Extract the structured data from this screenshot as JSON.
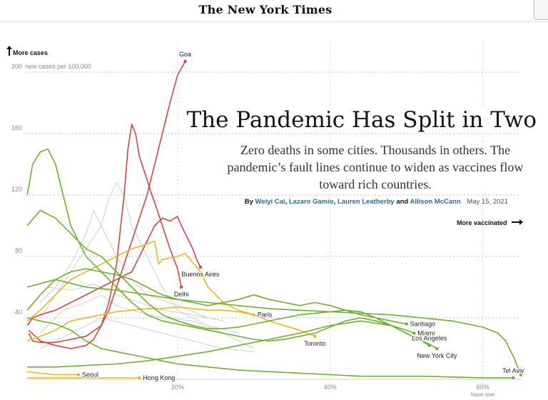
{
  "masthead": {
    "logo": "The New York Times"
  },
  "article": {
    "headline": "The Pandemic Has Split in Two",
    "dek": "Zero deaths in some cities. Thousands in others. The pandemic’s fault lines continue to widen as vaccines flow toward rich countries.",
    "byline_prefix": "By",
    "authors": [
      "Weiyi Cai",
      "Lazaro Gamio",
      "Lauren Leatherby",
      "Allison McCann"
    ],
    "byline_sep1": ",",
    "byline_and": "and",
    "date": "May 15, 2021"
  },
  "annotations": {
    "more_cases": "More cases",
    "more_vaccinated": "More vaccinated",
    "y_unit": "new cases per 100,000",
    "footnote": "have one"
  },
  "colors": {
    "red": "#d9453b",
    "yellow": "#f0b429",
    "green": "#6cb22e",
    "gray": "#cfcfcf"
  },
  "chart_data": {
    "type": "line",
    "x_unit": "percent with at least one dose",
    "y_unit": "new cases per 100,000",
    "xlim": [
      0,
      65
    ],
    "ylim": [
      0,
      200
    ],
    "x_ticks": [
      20,
      40,
      60
    ],
    "x_tick_labels": [
      "20%",
      "40%",
      "60%"
    ],
    "y_ticks": [
      40,
      80,
      120,
      160,
      200
    ],
    "y_tick_labels": [
      "40",
      "80",
      "120",
      "160",
      "200"
    ],
    "grid": true,
    "series": [
      {
        "name": "Goa",
        "color": "red",
        "label_pos": "above",
        "points": [
          [
            0.5,
            30
          ],
          [
            1,
            25
          ],
          [
            2,
            24
          ],
          [
            4,
            24
          ],
          [
            6,
            26
          ],
          [
            8,
            28
          ],
          [
            10,
            35
          ],
          [
            11,
            45
          ],
          [
            12,
            60
          ],
          [
            13,
            75
          ],
          [
            14,
            90
          ],
          [
            15,
            105
          ],
          [
            16,
            120
          ],
          [
            17,
            140
          ],
          [
            18,
            160
          ],
          [
            19,
            180
          ],
          [
            20,
            198
          ],
          [
            21,
            207
          ]
        ]
      },
      {
        "name": "Delhi",
        "color": "red",
        "label_pos": "below",
        "points": [
          [
            0.5,
            32
          ],
          [
            2,
            25
          ],
          [
            4,
            22
          ],
          [
            6,
            20
          ],
          [
            8,
            22
          ],
          [
            9,
            26
          ],
          [
            10,
            35
          ],
          [
            11,
            50
          ],
          [
            12,
            75
          ],
          [
            13,
            120
          ],
          [
            13.5,
            150
          ],
          [
            14,
            166
          ],
          [
            14.5,
            160
          ],
          [
            15,
            145
          ],
          [
            16,
            130
          ],
          [
            16.5,
            122
          ],
          [
            17,
            115
          ],
          [
            18,
            100
          ],
          [
            19,
            85
          ],
          [
            20,
            72
          ],
          [
            20.5,
            60
          ]
        ]
      },
      {
        "name": "Buenos Aires",
        "color": "red",
        "label_pos": "below",
        "points": [
          [
            0.3,
            35
          ],
          [
            1,
            40
          ],
          [
            2,
            42
          ],
          [
            4,
            45
          ],
          [
            6,
            50
          ],
          [
            8,
            55
          ],
          [
            10,
            60
          ],
          [
            12,
            65
          ],
          [
            14,
            70
          ],
          [
            15,
            80
          ],
          [
            16,
            90
          ],
          [
            17,
            100
          ],
          [
            18,
            105
          ],
          [
            19,
            103
          ],
          [
            20,
            106
          ],
          [
            20.5,
            100
          ],
          [
            21,
            95
          ],
          [
            21.5,
            90
          ],
          [
            22,
            85
          ],
          [
            22.5,
            78
          ],
          [
            23,
            73
          ]
        ]
      },
      {
        "name": "Paris",
        "color": "yellow",
        "label_pos": "right",
        "points": [
          [
            0.3,
            25
          ],
          [
            2,
            28
          ],
          [
            4,
            32
          ],
          [
            6,
            38
          ],
          [
            8,
            40
          ],
          [
            10,
            42
          ],
          [
            12,
            44
          ],
          [
            14,
            45
          ],
          [
            16,
            46
          ],
          [
            18,
            46
          ],
          [
            20,
            47
          ],
          [
            22,
            46
          ],
          [
            24,
            45
          ],
          [
            26,
            45
          ],
          [
            28,
            44
          ],
          [
            30,
            42
          ]
        ]
      },
      {
        "name": "Toronto",
        "color": "yellow",
        "label_pos": "below",
        "points": [
          [
            0.3,
            38
          ],
          [
            2,
            45
          ],
          [
            4,
            55
          ],
          [
            6,
            65
          ],
          [
            8,
            70
          ],
          [
            10,
            75
          ],
          [
            12,
            80
          ],
          [
            14,
            85
          ],
          [
            16,
            88
          ],
          [
            17,
            90
          ],
          [
            17.5,
            75
          ],
          [
            18,
            78
          ],
          [
            20,
            80
          ],
          [
            21,
            82
          ],
          [
            22,
            76
          ],
          [
            23,
            70
          ],
          [
            24,
            60
          ],
          [
            25,
            55
          ],
          [
            26,
            50
          ],
          [
            28,
            45
          ],
          [
            30,
            42
          ],
          [
            32,
            38
          ],
          [
            34,
            35
          ],
          [
            36,
            32
          ],
          [
            38,
            28
          ]
        ]
      },
      {
        "name": "Seoul",
        "color": "yellow",
        "label_pos": "right",
        "points": [
          [
            0.3,
            5
          ],
          [
            2,
            4
          ],
          [
            4,
            3
          ],
          [
            6,
            3
          ],
          [
            7,
            3
          ]
        ]
      },
      {
        "name": "Hong Kong",
        "color": "yellow",
        "label_pos": "right",
        "points": [
          [
            0.3,
            1
          ],
          [
            4,
            1
          ],
          [
            8,
            1
          ],
          [
            12,
            1
          ],
          [
            15,
            1
          ]
        ]
      },
      {
        "name": "Santiago",
        "color": "green",
        "label_pos": "right",
        "points": [
          [
            0.3,
            45
          ],
          [
            2,
            55
          ],
          [
            4,
            65
          ],
          [
            6,
            70
          ],
          [
            8,
            72
          ],
          [
            10,
            70
          ],
          [
            12,
            68
          ],
          [
            14,
            65
          ],
          [
            16,
            60
          ],
          [
            18,
            55
          ],
          [
            20,
            52
          ],
          [
            22,
            50
          ],
          [
            24,
            48
          ],
          [
            26,
            50
          ],
          [
            28,
            52
          ],
          [
            30,
            55
          ],
          [
            32,
            52
          ],
          [
            34,
            50
          ],
          [
            36,
            48
          ],
          [
            38,
            50
          ],
          [
            40,
            48
          ],
          [
            42,
            45
          ],
          [
            44,
            42
          ],
          [
            46,
            40
          ],
          [
            48,
            38
          ],
          [
            50,
            36
          ]
        ]
      },
      {
        "name": "Miami",
        "color": "green",
        "label_pos": "right",
        "points": [
          [
            0.3,
            120
          ],
          [
            1,
            140
          ],
          [
            2,
            148
          ],
          [
            3,
            150
          ],
          [
            4,
            140
          ],
          [
            5,
            120
          ],
          [
            6,
            100
          ],
          [
            7,
            90
          ],
          [
            8,
            80
          ],
          [
            10,
            70
          ],
          [
            12,
            60
          ],
          [
            14,
            50
          ],
          [
            16,
            42
          ],
          [
            18,
            38
          ],
          [
            20,
            36
          ],
          [
            22,
            34
          ],
          [
            24,
            32
          ],
          [
            26,
            30
          ],
          [
            28,
            28
          ],
          [
            30,
            26
          ],
          [
            32,
            25
          ],
          [
            34,
            26
          ],
          [
            36,
            28
          ],
          [
            38,
            30
          ],
          [
            40,
            34
          ],
          [
            42,
            38
          ],
          [
            44,
            40
          ],
          [
            46,
            38
          ],
          [
            48,
            35
          ],
          [
            50,
            32
          ],
          [
            51,
            30
          ]
        ]
      },
      {
        "name": "New York City",
        "color": "green",
        "label_pos": "below",
        "points": [
          [
            0.3,
            100
          ],
          [
            2,
            110
          ],
          [
            4,
            105
          ],
          [
            6,
            95
          ],
          [
            8,
            85
          ],
          [
            10,
            80
          ],
          [
            12,
            70
          ],
          [
            14,
            60
          ],
          [
            16,
            50
          ],
          [
            18,
            42
          ],
          [
            20,
            38
          ],
          [
            22,
            35
          ],
          [
            24,
            33
          ],
          [
            26,
            33
          ],
          [
            28,
            34
          ],
          [
            30,
            36
          ],
          [
            32,
            38
          ],
          [
            34,
            40
          ],
          [
            36,
            42
          ],
          [
            38,
            43
          ],
          [
            40,
            44
          ],
          [
            42,
            45
          ],
          [
            44,
            44
          ],
          [
            46,
            40
          ],
          [
            48,
            35
          ],
          [
            50,
            30
          ],
          [
            52,
            25
          ],
          [
            53,
            23
          ],
          [
            54,
            20
          ]
        ]
      },
      {
        "name": "Los Angeles",
        "color": "green",
        "label_pos": "above",
        "points": [
          [
            0.3,
            8
          ],
          [
            4,
            8
          ],
          [
            8,
            9
          ],
          [
            12,
            10
          ],
          [
            16,
            12
          ],
          [
            20,
            15
          ],
          [
            24,
            18
          ],
          [
            28,
            22
          ],
          [
            32,
            26
          ],
          [
            36,
            30
          ],
          [
            40,
            35
          ],
          [
            44,
            38
          ],
          [
            48,
            35
          ],
          [
            50,
            30
          ],
          [
            52,
            25
          ],
          [
            53,
            22
          ]
        ]
      },
      {
        "name": "Tel Aviv",
        "color": "green",
        "label_pos": "above",
        "points": [
          [
            0.3,
            40
          ],
          [
            2,
            38
          ],
          [
            4,
            36
          ],
          [
            6,
            32
          ],
          [
            8,
            25
          ],
          [
            10,
            20
          ],
          [
            12,
            18
          ],
          [
            14,
            16
          ],
          [
            16,
            14
          ],
          [
            18,
            12
          ],
          [
            20,
            10
          ],
          [
            24,
            8
          ],
          [
            28,
            6
          ],
          [
            32,
            5
          ],
          [
            36,
            4
          ],
          [
            40,
            3
          ],
          [
            44,
            2
          ],
          [
            48,
            2
          ],
          [
            52,
            2
          ],
          [
            56,
            1.5
          ],
          [
            60,
            1
          ],
          [
            64,
            1
          ]
        ]
      },
      {
        "name": "",
        "color": "green",
        "label_pos": "none",
        "points": [
          [
            0.3,
            60
          ],
          [
            4,
            65
          ],
          [
            8,
            60
          ],
          [
            12,
            58
          ],
          [
            16,
            55
          ],
          [
            20,
            52
          ],
          [
            24,
            50
          ],
          [
            28,
            48
          ],
          [
            32,
            46
          ],
          [
            36,
            45
          ],
          [
            40,
            44
          ],
          [
            44,
            43
          ],
          [
            48,
            42
          ],
          [
            52,
            40
          ],
          [
            56,
            38
          ],
          [
            60,
            34
          ],
          [
            62,
            30
          ],
          [
            63,
            25
          ],
          [
            64,
            15
          ],
          [
            65,
            3
          ]
        ]
      }
    ]
  }
}
